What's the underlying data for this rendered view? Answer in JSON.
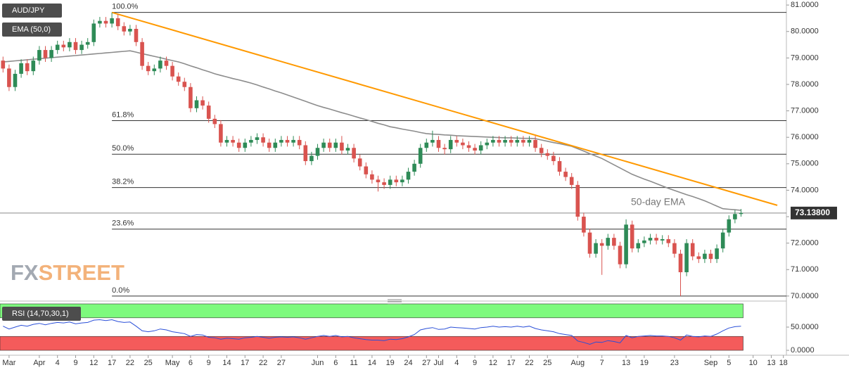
{
  "chart_data": [
    {
      "type": "candlestick",
      "title": "AUD/JPY",
      "up_color": "#2e8b57",
      "down_color": "#d9534f",
      "categories": [
        null,
        "Mar",
        null,
        null,
        null,
        null,
        "Apr",
        null,
        null,
        "4",
        null,
        null,
        "9",
        null,
        null,
        "12",
        null,
        null,
        "17",
        null,
        null,
        "22",
        null,
        null,
        "25",
        null,
        null,
        null,
        "May",
        null,
        null,
        "6",
        null,
        null,
        "9",
        null,
        null,
        "14",
        null,
        null,
        "17",
        null,
        null,
        "22",
        null,
        null,
        "27",
        null,
        null,
        null,
        null,
        null,
        "Jun",
        null,
        null,
        "6",
        null,
        null,
        "11",
        null,
        null,
        "14",
        null,
        null,
        "19",
        null,
        null,
        "24",
        null,
        null,
        "27",
        null,
        "Jul",
        null,
        null,
        "4",
        null,
        null,
        "9",
        null,
        null,
        "12",
        null,
        null,
        "17",
        null,
        null,
        "22",
        null,
        null,
        "25",
        null,
        null,
        null,
        null,
        "Aug",
        null,
        null,
        null,
        "7",
        null,
        null,
        null,
        "13",
        null,
        null,
        "19",
        null,
        null,
        null,
        null,
        "23",
        null,
        null,
        null,
        null,
        null,
        "Sep",
        null,
        null,
        "5",
        null,
        null,
        null,
        "10",
        null,
        null,
        "13",
        null,
        "18"
      ],
      "ohlc": [
        [
          78.9,
          79.05,
          78.45,
          78.6
        ],
        [
          78.6,
          78.75,
          77.75,
          77.9
        ],
        [
          77.9,
          78.55,
          77.75,
          78.4
        ],
        [
          78.4,
          78.95,
          78.25,
          78.8
        ],
        [
          78.8,
          78.95,
          78.35,
          78.5
        ],
        [
          78.5,
          79.05,
          78.35,
          78.9
        ],
        [
          78.9,
          79.45,
          78.75,
          79.3
        ],
        [
          79.3,
          79.45,
          78.85,
          79.0
        ],
        [
          79.0,
          79.45,
          78.85,
          79.3
        ],
        [
          79.3,
          79.65,
          79.15,
          79.5
        ],
        [
          79.5,
          79.65,
          79.25,
          79.4
        ],
        [
          79.4,
          79.75,
          79.25,
          79.6
        ],
        [
          79.6,
          79.75,
          79.15,
          79.3
        ],
        [
          79.3,
          79.65,
          79.15,
          79.5
        ],
        [
          79.5,
          79.75,
          79.35,
          79.6
        ],
        [
          79.6,
          80.45,
          79.45,
          80.3
        ],
        [
          80.3,
          80.55,
          80.15,
          80.4
        ],
        [
          80.4,
          80.55,
          80.15,
          80.3
        ],
        [
          80.3,
          80.72,
          80.15,
          80.5
        ],
        [
          80.5,
          80.65,
          80.05,
          80.2
        ],
        [
          80.2,
          80.35,
          79.85,
          80.0
        ],
        [
          80.0,
          80.25,
          79.85,
          80.1
        ],
        [
          80.1,
          80.25,
          79.45,
          79.6
        ],
        [
          79.6,
          79.75,
          78.55,
          78.7
        ],
        [
          78.7,
          78.85,
          78.35,
          78.5
        ],
        [
          78.5,
          78.75,
          78.35,
          78.6
        ],
        [
          78.6,
          79.05,
          78.45,
          78.9
        ],
        [
          78.9,
          79.05,
          78.55,
          78.7
        ],
        [
          78.7,
          78.85,
          78.15,
          78.3
        ],
        [
          78.3,
          78.45,
          77.95,
          78.1
        ],
        [
          78.1,
          78.25,
          77.75,
          77.9
        ],
        [
          77.9,
          78.05,
          76.95,
          77.1
        ],
        [
          77.1,
          77.55,
          76.95,
          77.4
        ],
        [
          77.4,
          77.55,
          77.05,
          77.2
        ],
        [
          77.2,
          77.35,
          76.55,
          76.7
        ],
        [
          76.7,
          76.85,
          76.35,
          76.5
        ],
        [
          76.5,
          76.65,
          75.65,
          75.8
        ],
        [
          75.8,
          76.05,
          75.65,
          75.9
        ],
        [
          75.9,
          76.05,
          75.65,
          75.8
        ],
        [
          75.8,
          75.95,
          75.45,
          75.6
        ],
        [
          75.6,
          75.95,
          75.45,
          75.8
        ],
        [
          75.8,
          76.05,
          75.65,
          75.9
        ],
        [
          75.9,
          76.15,
          75.75,
          76.0
        ],
        [
          76.0,
          76.15,
          75.65,
          75.8
        ],
        [
          75.8,
          75.95,
          75.45,
          75.6
        ],
        [
          75.6,
          75.95,
          75.45,
          75.8
        ],
        [
          75.8,
          76.05,
          75.65,
          75.9
        ],
        [
          75.9,
          76.05,
          75.65,
          75.8
        ],
        [
          75.8,
          76.05,
          75.65,
          75.9
        ],
        [
          75.9,
          76.05,
          75.55,
          75.7
        ],
        [
          75.7,
          75.85,
          74.95,
          75.1
        ],
        [
          75.1,
          75.45,
          74.95,
          75.3
        ],
        [
          75.3,
          75.75,
          75.15,
          75.6
        ],
        [
          75.6,
          75.95,
          75.45,
          75.8
        ],
        [
          75.8,
          75.95,
          75.45,
          75.6
        ],
        [
          75.6,
          75.95,
          75.45,
          75.8
        ],
        [
          75.8,
          76.05,
          75.35,
          75.5
        ],
        [
          75.5,
          75.75,
          75.35,
          75.6
        ],
        [
          75.6,
          75.75,
          75.05,
          75.2
        ],
        [
          75.2,
          75.35,
          74.75,
          74.9
        ],
        [
          74.9,
          75.05,
          74.45,
          74.6
        ],
        [
          74.6,
          74.75,
          74.25,
          74.4
        ],
        [
          74.4,
          74.55,
          73.95,
          74.3
        ],
        [
          74.3,
          74.45,
          74.05,
          74.2
        ],
        [
          74.2,
          74.55,
          74.05,
          74.4
        ],
        [
          74.4,
          74.55,
          74.15,
          74.3
        ],
        [
          74.3,
          74.55,
          74.15,
          74.4
        ],
        [
          74.4,
          74.85,
          74.25,
          74.7
        ],
        [
          74.7,
          75.15,
          74.55,
          75.0
        ],
        [
          75.0,
          75.75,
          74.85,
          75.6
        ],
        [
          75.6,
          75.95,
          75.45,
          75.8
        ],
        [
          75.8,
          76.25,
          75.65,
          75.9
        ],
        [
          75.9,
          76.05,
          75.45,
          75.6
        ],
        [
          75.6,
          75.75,
          75.35,
          75.55
        ],
        [
          75.55,
          76.05,
          75.4,
          75.9
        ],
        [
          75.9,
          76.05,
          75.65,
          75.8
        ],
        [
          75.8,
          75.95,
          75.55,
          75.7
        ],
        [
          75.7,
          75.85,
          75.45,
          75.6
        ],
        [
          75.6,
          75.75,
          75.35,
          75.5
        ],
        [
          75.5,
          75.85,
          75.35,
          75.7
        ],
        [
          75.7,
          75.95,
          75.55,
          75.8
        ],
        [
          75.8,
          76.05,
          75.65,
          75.9
        ],
        [
          75.9,
          76.05,
          75.65,
          75.8
        ],
        [
          75.8,
          76.05,
          75.65,
          75.9
        ],
        [
          75.9,
          76.05,
          75.65,
          75.8
        ],
        [
          75.8,
          76.05,
          75.65,
          75.9
        ],
        [
          75.9,
          76.05,
          75.65,
          75.8
        ],
        [
          75.8,
          76.05,
          75.65,
          75.9
        ],
        [
          75.9,
          76.05,
          75.45,
          75.6
        ],
        [
          75.6,
          75.75,
          75.25,
          75.4
        ],
        [
          75.4,
          75.55,
          75.15,
          75.3
        ],
        [
          75.3,
          75.45,
          74.95,
          75.1
        ],
        [
          75.1,
          75.25,
          74.55,
          74.7
        ],
        [
          74.7,
          74.85,
          74.35,
          74.5
        ],
        [
          74.5,
          74.65,
          74.05,
          74.2
        ],
        [
          74.2,
          74.35,
          72.85,
          73.0
        ],
        [
          73.0,
          73.15,
          72.25,
          72.4
        ],
        [
          72.4,
          72.55,
          71.45,
          71.6
        ],
        [
          71.6,
          72.15,
          71.45,
          72.0
        ],
        [
          72.0,
          72.15,
          70.8,
          71.9
        ],
        [
          71.9,
          72.35,
          71.75,
          72.2
        ],
        [
          72.2,
          72.35,
          71.75,
          71.9
        ],
        [
          71.9,
          72.05,
          71.05,
          71.2
        ],
        [
          71.2,
          72.9,
          71.05,
          72.7
        ],
        [
          72.7,
          72.85,
          71.65,
          71.8
        ],
        [
          71.8,
          72.15,
          71.65,
          72.0
        ],
        [
          72.0,
          72.25,
          71.85,
          72.1
        ],
        [
          72.1,
          72.35,
          71.95,
          72.2
        ],
        [
          72.2,
          72.35,
          71.95,
          72.1
        ],
        [
          72.1,
          72.3,
          71.95,
          72.15
        ],
        [
          72.15,
          72.3,
          71.85,
          72.0
        ],
        [
          72.0,
          72.15,
          71.45,
          71.6
        ],
        [
          71.6,
          71.75,
          70.0,
          70.9
        ],
        [
          70.9,
          72.15,
          70.75,
          72.0
        ],
        [
          72.0,
          72.15,
          71.35,
          71.5
        ],
        [
          71.5,
          71.65,
          71.25,
          71.4
        ],
        [
          71.4,
          71.75,
          71.25,
          71.6
        ],
        [
          71.6,
          71.75,
          71.25,
          71.4
        ],
        [
          71.4,
          71.95,
          71.25,
          71.8
        ],
        [
          71.8,
          72.55,
          71.65,
          72.4
        ],
        [
          72.4,
          73.05,
          72.25,
          72.9
        ],
        [
          72.9,
          73.25,
          72.75,
          73.1
        ],
        [
          73.1,
          73.29,
          73.0,
          73.138
        ],
        null,
        null,
        null,
        null,
        null,
        null,
        null
      ],
      "series": [
        {
          "name": "EMA (50,0)",
          "color": "#8c8c8c",
          "values": [
            78.85,
            78.87,
            78.89,
            78.91,
            78.93,
            78.95,
            78.97,
            78.99,
            79.01,
            79.03,
            79.05,
            79.07,
            79.09,
            79.11,
            79.13,
            79.15,
            79.17,
            79.19,
            79.21,
            79.23,
            79.25,
            79.27,
            79.22,
            79.16,
            79.11,
            79.06,
            79.01,
            78.95,
            78.9,
            78.85,
            78.78,
            78.7,
            78.63,
            78.55,
            78.48,
            78.4,
            78.34,
            78.28,
            78.22,
            78.17,
            78.11,
            78.05,
            77.98,
            77.9,
            77.83,
            77.75,
            77.68,
            77.6,
            77.52,
            77.44,
            77.36,
            77.28,
            77.2,
            77.13,
            77.07,
            77.0,
            76.93,
            76.87,
            76.8,
            76.73,
            76.67,
            76.6,
            76.53,
            76.47,
            76.4,
            76.36,
            76.31,
            76.27,
            76.23,
            76.18,
            76.14,
            76.12,
            76.11,
            76.09,
            76.08,
            76.06,
            76.05,
            76.04,
            76.03,
            76.02,
            76.01,
            76.0,
            75.99,
            75.98,
            75.98,
            75.97,
            75.96,
            75.96,
            75.95,
            75.9,
            75.85,
            75.8,
            75.76,
            75.71,
            75.66,
            75.57,
            75.48,
            75.38,
            75.29,
            75.2,
            75.08,
            74.96,
            74.84,
            74.72,
            74.6,
            74.51,
            74.42,
            74.34,
            74.25,
            74.16,
            74.07,
            73.99,
            73.91,
            73.83,
            73.76,
            73.68,
            73.6,
            73.5,
            73.4,
            73.3,
            73.28,
            73.26,
            73.24,
            null,
            null,
            null,
            null,
            null,
            null,
            null
          ]
        }
      ],
      "ylim": [
        69.81,
        81.19
      ],
      "yticks": [
        {
          "value": 70,
          "label": "70.0000"
        },
        {
          "value": 71,
          "label": "71.0000"
        },
        {
          "value": 72,
          "label": "72.0000"
        },
        {
          "value": 73,
          "label": "73.0000"
        },
        {
          "value": 74,
          "label": "74.0000"
        },
        {
          "value": 75,
          "label": "75.0000"
        },
        {
          "value": 76,
          "label": "76.0000"
        },
        {
          "value": 77,
          "label": "77.0000"
        },
        {
          "value": 78,
          "label": "78.0000"
        },
        {
          "value": 79,
          "label": "79.0000"
        },
        {
          "value": 80,
          "label": "80.0000"
        },
        {
          "value": 81,
          "label": "81.0000"
        }
      ],
      "last_price": {
        "value": 73.138,
        "label": "73.13800"
      },
      "fib_levels": [
        {
          "value": 80.72,
          "label": "100.0%"
        },
        {
          "value": 76.63,
          "label": "61.8%"
        },
        {
          "value": 75.36,
          "label": "50.0%"
        },
        {
          "value": 74.1,
          "label": "38.2%"
        },
        {
          "value": 72.53,
          "label": "23.6%"
        },
        {
          "value": 70.0,
          "label": "0.0%"
        }
      ],
      "trendline": {
        "color": "#ff9900",
        "x": [
          18,
          128
        ],
        "y": [
          80.72,
          73.43
        ]
      },
      "annotation": "50-day EMA"
    },
    {
      "type": "line",
      "title": "RSI (14,70,30,1)",
      "color": "#2a4fd8",
      "values": [
        52,
        46,
        50,
        54,
        52,
        56,
        58,
        55,
        58,
        60,
        59,
        61,
        57,
        59,
        60,
        65,
        66,
        64,
        66,
        62,
        60,
        61,
        52,
        42,
        40,
        42,
        46,
        44,
        40,
        38,
        36,
        30,
        34,
        33,
        28,
        27,
        24,
        26,
        25,
        24,
        27,
        28,
        30,
        28,
        26,
        28,
        29,
        28,
        29,
        27,
        24,
        27,
        30,
        32,
        30,
        32,
        29,
        30,
        27,
        25,
        23,
        22,
        22,
        21,
        24,
        23,
        25,
        29,
        34,
        44,
        47,
        49,
        45,
        46,
        50,
        49,
        48,
        47,
        46,
        49,
        50,
        52,
        50,
        51,
        50,
        52,
        50,
        52,
        47,
        44,
        42,
        40,
        36,
        34,
        32,
        20,
        17,
        13,
        18,
        17,
        21,
        19,
        16,
        32,
        27,
        30,
        31,
        32,
        31,
        31,
        30,
        27,
        22,
        33,
        30,
        29,
        31,
        30,
        35,
        42,
        48,
        51,
        52,
        null,
        null,
        null,
        null,
        null,
        null,
        null
      ],
      "ylim": [
        -6,
        100
      ],
      "yticks": [
        {
          "value": 50,
          "label": "50.0000"
        },
        {
          "value": 0,
          "label": "0.0000"
        }
      ],
      "zones": [
        {
          "from": 70,
          "to": 100,
          "color": "#7dfa7d"
        },
        {
          "from": 0,
          "to": 30,
          "color": "#f45b5b"
        }
      ]
    }
  ],
  "watermark": [
    "FX",
    "STREET"
  ]
}
